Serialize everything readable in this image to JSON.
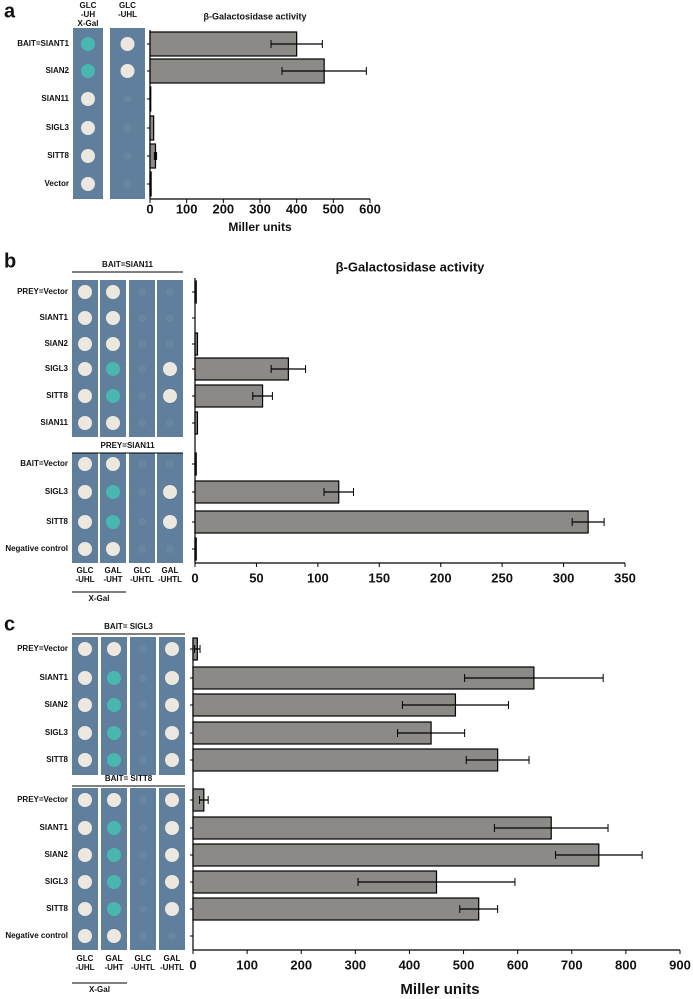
{
  "chart_data": [
    {
      "type": "bar",
      "orientation": "horizontal",
      "panel": "a",
      "title": "β-Galactosidase activity",
      "xlabel": "Miller units",
      "plate_columns": [
        [
          "GLC",
          "-UH",
          "X-Gal"
        ],
        [
          "GLC",
          "-UHL"
        ]
      ],
      "categories": [
        "BAIT=SlANT1",
        "SlAN2",
        "SlAN11",
        "SlGL3",
        "SlTT8",
        "Vector"
      ],
      "values": [
        400,
        475,
        2,
        10,
        15,
        3
      ],
      "errors": [
        70,
        115,
        0,
        0,
        3,
        0
      ],
      "xlim": [
        0,
        600
      ],
      "xticks": [
        0,
        100,
        200,
        300,
        400,
        500,
        600
      ],
      "color": "#8c8a86"
    },
    {
      "type": "bar",
      "orientation": "horizontal",
      "panel": "b",
      "title": "β-Galactosidase activity",
      "plate_groups": [
        "BAIT=SlAN11",
        "PREY=SlAN11"
      ],
      "plate_columns": [
        [
          "GLC",
          "-UHL"
        ],
        [
          "GAL",
          "-UHT"
        ],
        [
          "GLC",
          "-UHTL"
        ],
        [
          "GAL",
          "-UHTL"
        ]
      ],
      "plate_footer": "X-Gal",
      "categories": [
        "PREY=Vector",
        "SlANT1",
        "SlAN2",
        "SlGL3",
        "SlTT8",
        "SlAN11",
        "BAIT=Vector",
        "SlGL3",
        "SlTT8",
        "Negative control"
      ],
      "values": [
        1,
        0,
        2,
        76,
        55,
        2,
        1,
        117,
        320,
        1
      ],
      "errors": [
        0,
        0,
        0,
        14,
        8,
        0,
        0,
        12,
        13,
        0
      ],
      "xlim": [
        0,
        350
      ],
      "xticks": [
        0,
        50,
        100,
        150,
        200,
        250,
        300,
        350
      ],
      "color": "#8c8a86"
    },
    {
      "type": "bar",
      "orientation": "horizontal",
      "panel": "c",
      "xlabel": "Miller units",
      "plate_groups": [
        "BAIT= SlGL3",
        "BAIT= SlTT8"
      ],
      "plate_columns": [
        [
          "GLC",
          "-UHL"
        ],
        [
          "GAL",
          "-UHT"
        ],
        [
          "GLC",
          "-UHTL"
        ],
        [
          "GAL",
          "-UHTL"
        ]
      ],
      "plate_footer": "X-Gal",
      "categories": [
        "PREY=Vector",
        "SlANT1",
        "SlAN2",
        "SlGL3",
        "SlTT8",
        "PREY=Vector",
        "SlANT1",
        "SlAN2",
        "SlGL3",
        "SlTT8",
        "Negative control"
      ],
      "values": [
        8,
        630,
        485,
        440,
        563,
        20,
        662,
        750,
        450,
        528,
        0
      ],
      "errors": [
        5,
        128,
        98,
        62,
        58,
        8,
        105,
        80,
        145,
        35,
        0
      ],
      "xlim": [
        0,
        900
      ],
      "xticks": [
        0,
        100,
        200,
        300,
        400,
        500,
        600,
        700,
        800,
        900
      ],
      "color": "#8c8a86"
    }
  ]
}
